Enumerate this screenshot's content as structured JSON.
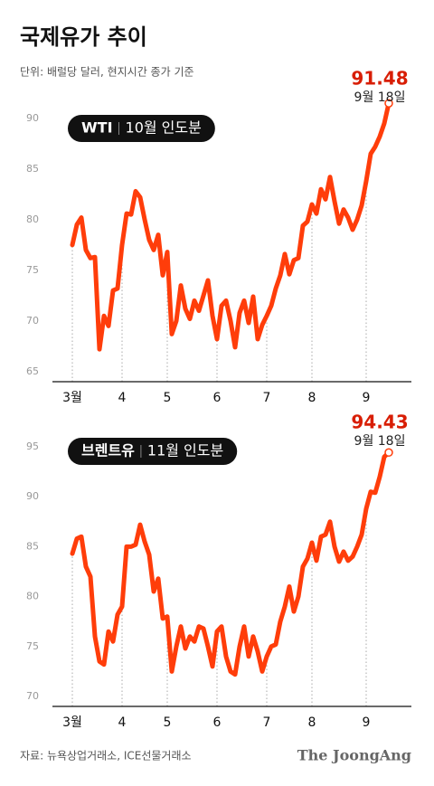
{
  "header": {
    "title": "국제유가 추이",
    "subtitle": "단위: 배럴당 달러, 현지시간 종가 기준"
  },
  "footer": {
    "source": "자료: 뉴욕상업거래소, ICE선물거래소",
    "brand": "The JoongAng"
  },
  "chart_data": [
    {
      "type": "line",
      "contract": "10월 인도분",
      "annotation": "9월 18일",
      "grid": false,
      "categories": [
        "3월",
        null,
        null,
        null,
        null,
        null,
        null,
        null,
        null,
        null,
        null,
        "4",
        null,
        null,
        null,
        null,
        null,
        null,
        null,
        null,
        null,
        "5",
        null,
        null,
        null,
        null,
        null,
        null,
        null,
        null,
        null,
        null,
        "6",
        null,
        null,
        null,
        null,
        null,
        null,
        null,
        null,
        null,
        null,
        "7",
        null,
        null,
        null,
        null,
        null,
        null,
        null,
        null,
        null,
        "8",
        null,
        null,
        null,
        null,
        null,
        null,
        null,
        null,
        null,
        null,
        null,
        "9",
        null,
        null,
        null,
        null,
        null
      ],
      "series": [
        {
          "name": "WTI",
          "color": "#ff3d0a",
          "values": [
            77.5,
            79.5,
            80.2,
            77,
            76.2,
            76.3,
            67.2,
            70.5,
            69.5,
            73,
            73.2,
            77.5,
            80.6,
            80.5,
            82.8,
            82.2,
            80,
            78,
            77,
            78.5,
            74.5,
            76.8,
            68.7,
            70,
            73.5,
            71.2,
            70.2,
            72,
            71,
            72.5,
            74,
            70.5,
            68.2,
            71.5,
            72,
            70,
            67.4,
            70.8,
            72,
            69.8,
            72.4,
            68.2,
            69.6,
            70.5,
            71.5,
            73.2,
            74.5,
            76.6,
            74.6,
            76,
            76.2,
            79.4,
            79.8,
            81.5,
            80.6,
            83,
            82,
            84.2,
            81.8,
            79.6,
            81,
            80.2,
            79,
            80,
            81.4,
            83.8,
            86.5,
            87.2,
            88.2,
            89.5,
            91.48
          ]
        }
      ],
      "ylim": [
        64,
        92
      ],
      "yticks": [
        65,
        70,
        75,
        80,
        85,
        90
      ]
    },
    {
      "type": "line",
      "contract": "11월 인도분",
      "annotation": "9월 18일",
      "grid": false,
      "categories": [
        "3월",
        null,
        null,
        null,
        null,
        null,
        null,
        null,
        null,
        null,
        null,
        "4",
        null,
        null,
        null,
        null,
        null,
        null,
        null,
        null,
        null,
        "5",
        null,
        null,
        null,
        null,
        null,
        null,
        null,
        null,
        null,
        null,
        "6",
        null,
        null,
        null,
        null,
        null,
        null,
        null,
        null,
        null,
        null,
        "7",
        null,
        null,
        null,
        null,
        null,
        null,
        null,
        null,
        null,
        "8",
        null,
        null,
        null,
        null,
        null,
        null,
        null,
        null,
        null,
        null,
        null,
        "9",
        null,
        null,
        null,
        null,
        null
      ],
      "series": [
        {
          "name": "브렌트유",
          "color": "#ff3d0a",
          "values": [
            84.3,
            85.8,
            86,
            83,
            82,
            76,
            73.5,
            73.2,
            76.5,
            75.5,
            78.2,
            79,
            85,
            85,
            85.2,
            87.2,
            85.5,
            84.2,
            80.5,
            81.8,
            77.8,
            78,
            72.5,
            75,
            77,
            74.8,
            76,
            75.5,
            77,
            76.8,
            75,
            73,
            76.5,
            77,
            74,
            72.5,
            72.2,
            75,
            77,
            74,
            76,
            74.5,
            72.5,
            74,
            75,
            75.2,
            77.5,
            79,
            81,
            78.5,
            80,
            83,
            83.8,
            85.4,
            83.6,
            86,
            86.2,
            87.5,
            85,
            83.5,
            84.5,
            83.6,
            84,
            85,
            86.2,
            88.8,
            90.5,
            90.4,
            92,
            94,
            94.43
          ]
        }
      ],
      "ylim": [
        69,
        97
      ],
      "yticks": [
        70,
        75,
        80,
        85,
        90,
        95
      ]
    }
  ]
}
